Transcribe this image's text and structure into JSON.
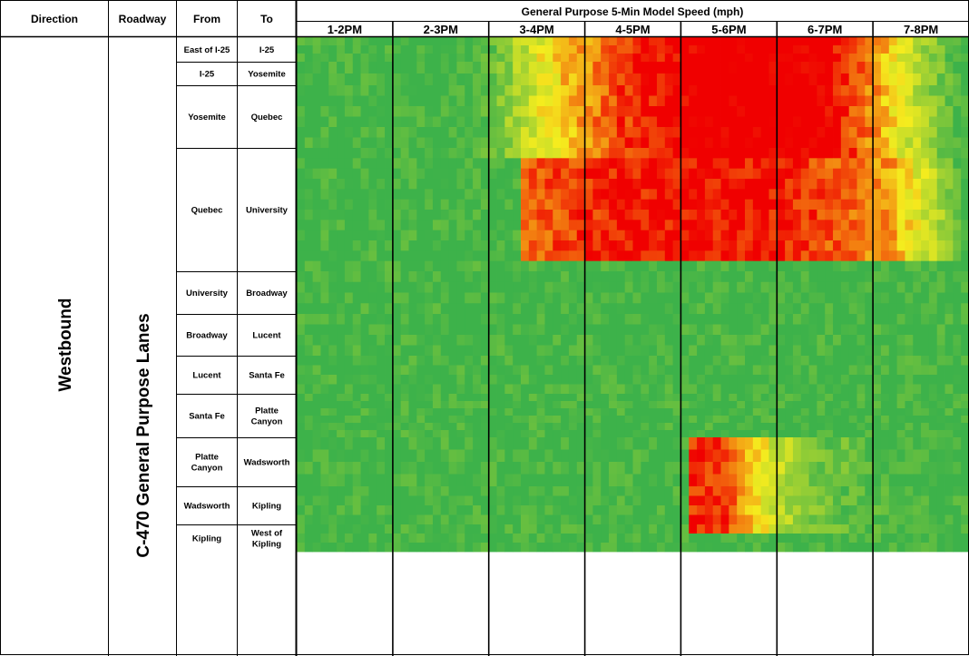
{
  "table": {
    "headers": {
      "direction": "Direction",
      "roadway": "Roadway",
      "from": "From",
      "to": "To",
      "speed": "General Purpose 5-Min Model Speed (mph)"
    },
    "direction_value": "Westbound",
    "roadway_value": "C-470 General Purpose Lanes",
    "time_periods": [
      "1-2PM",
      "2-3PM",
      "3-4PM",
      "4-5PM",
      "5-6PM",
      "6-7PM",
      "7-8PM"
    ],
    "segments": [
      {
        "from": [
          "East of I-25"
        ],
        "to": [
          "I-25"
        ]
      },
      {
        "from": [
          "I-25"
        ],
        "to": [
          "Yosemite"
        ]
      },
      {
        "from": [
          "Yosemite"
        ],
        "to": [
          "Quebec"
        ]
      },
      {
        "from": [
          "Quebec"
        ],
        "to": [
          "University"
        ]
      },
      {
        "from": [
          "University"
        ],
        "to": [
          "Broadway"
        ]
      },
      {
        "from": [
          "Broadway"
        ],
        "to": [
          "Lucent"
        ]
      },
      {
        "from": [
          "Lucent"
        ],
        "to": [
          "Santa Fe"
        ]
      },
      {
        "from": [
          "Santa Fe"
        ],
        "to": [
          "Platte",
          "Canyon"
        ]
      },
      {
        "from": [
          "Platte",
          "Canyon"
        ],
        "to": [
          "Wadsworth"
        ]
      },
      {
        "from": [
          "Wadsworth"
        ],
        "to": [
          "Kipling"
        ]
      },
      {
        "from": [
          "Kipling"
        ],
        "to": [
          "West of",
          "Kipling"
        ]
      }
    ]
  },
  "chart_data": {
    "type": "heatmap",
    "title": "General Purpose 5-Min Model Speed (mph)",
    "x_categories": [
      "1-2PM",
      "2-3PM",
      "3-4PM",
      "4-5PM",
      "5-6PM",
      "6-7PM",
      "7-8PM"
    ],
    "x_interval_minutes": 5,
    "intervals_per_period": 12,
    "y_categories": [
      "East of I-25 to I-25",
      "I-25 to Yosemite",
      "Yosemite to Quebec",
      "Quebec to University",
      "University to Broadway",
      "Broadway to Lucent",
      "Lucent to Santa Fe",
      "Santa Fe to Platte Canyon",
      "Platte Canyon to Wadsworth",
      "Wadsworth to Kipling",
      "Kipling to West of Kipling"
    ],
    "subrows_per_segment": [
      3,
      2,
      6,
      12,
      4,
      4,
      4,
      6,
      4,
      4,
      3
    ],
    "color_scale": {
      "free_flow": "#3db24a",
      "yellow": "#f5ec1e",
      "congested": "#f00000"
    },
    "congestion_bands": [
      {
        "rows": [
          0,
          11
        ],
        "profile_5min": [
          [
            0,
            4,
            55
          ],
          [
            20,
            12,
            55
          ],
          [
            30,
            18,
            40
          ],
          [
            40,
            25,
            30
          ],
          [
            50,
            32,
            25
          ],
          [
            62,
            35,
            25
          ],
          [
            66,
            39,
            26
          ],
          [
            72,
            45,
            35
          ],
          [
            78,
            49,
            45
          ],
          [
            84,
            51,
            55
          ]
        ]
      },
      {
        "rows": [
          12,
          21
        ],
        "profile_5min": [
          [
            0,
            16,
            55
          ],
          [
            8,
            22,
            50
          ],
          [
            20,
            26,
            35
          ],
          [
            40,
            30,
            28
          ],
          [
            60,
            34,
            28
          ],
          [
            74,
            39,
            35
          ],
          [
            80,
            45,
            45
          ],
          [
            84,
            51,
            55
          ]
        ]
      },
      {
        "rows": [
          41,
          49
        ],
        "profile_5min": [
          [
            0,
            36,
            55
          ],
          [
            10,
            38,
            52
          ],
          [
            24,
            42,
            42
          ],
          [
            34,
            46,
            33
          ],
          [
            45,
            48,
            28
          ],
          [
            53,
            50,
            30
          ],
          [
            58,
            51,
            40
          ],
          [
            64,
            52,
            48
          ],
          [
            84,
            51,
            55
          ]
        ]
      }
    ],
    "free_flow_speed_mph": 55
  }
}
